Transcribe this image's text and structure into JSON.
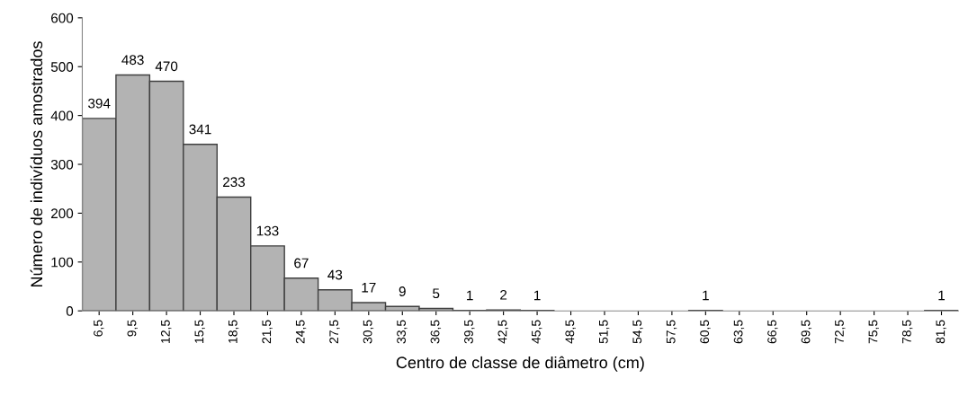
{
  "chart_data": {
    "type": "bar",
    "xlabel": "Centro de classe de diâmetro (cm)",
    "ylabel": "Número de indivíduos amostrados",
    "categories": [
      "6,5",
      "9,5",
      "12,5",
      "15,5",
      "18,5",
      "21,5",
      "24,5",
      "27,5",
      "30,5",
      "33,5",
      "36,5",
      "39,5",
      "42,5",
      "45,5",
      "48,5",
      "51,5",
      "54,5",
      "57,5",
      "60,5",
      "63,5",
      "66,5",
      "69,5",
      "72,5",
      "75,5",
      "78,5",
      "81,5"
    ],
    "values": [
      394,
      483,
      470,
      341,
      233,
      133,
      67,
      43,
      17,
      9,
      5,
      1,
      2,
      1,
      0,
      0,
      0,
      0,
      1,
      0,
      0,
      0,
      0,
      0,
      0,
      1
    ],
    "value_labels": [
      "394",
      "483",
      "470",
      "341",
      "233",
      "133",
      "67",
      "43",
      "17",
      "9",
      "5",
      "1",
      "2",
      "1",
      null,
      null,
      null,
      null,
      "1",
      null,
      null,
      null,
      null,
      null,
      null,
      "1"
    ],
    "color": "#b3b3b3",
    "ylim": [
      0,
      600
    ],
    "yticks": [
      0,
      100,
      200,
      300,
      400,
      500,
      600
    ],
    "grid": false
  }
}
